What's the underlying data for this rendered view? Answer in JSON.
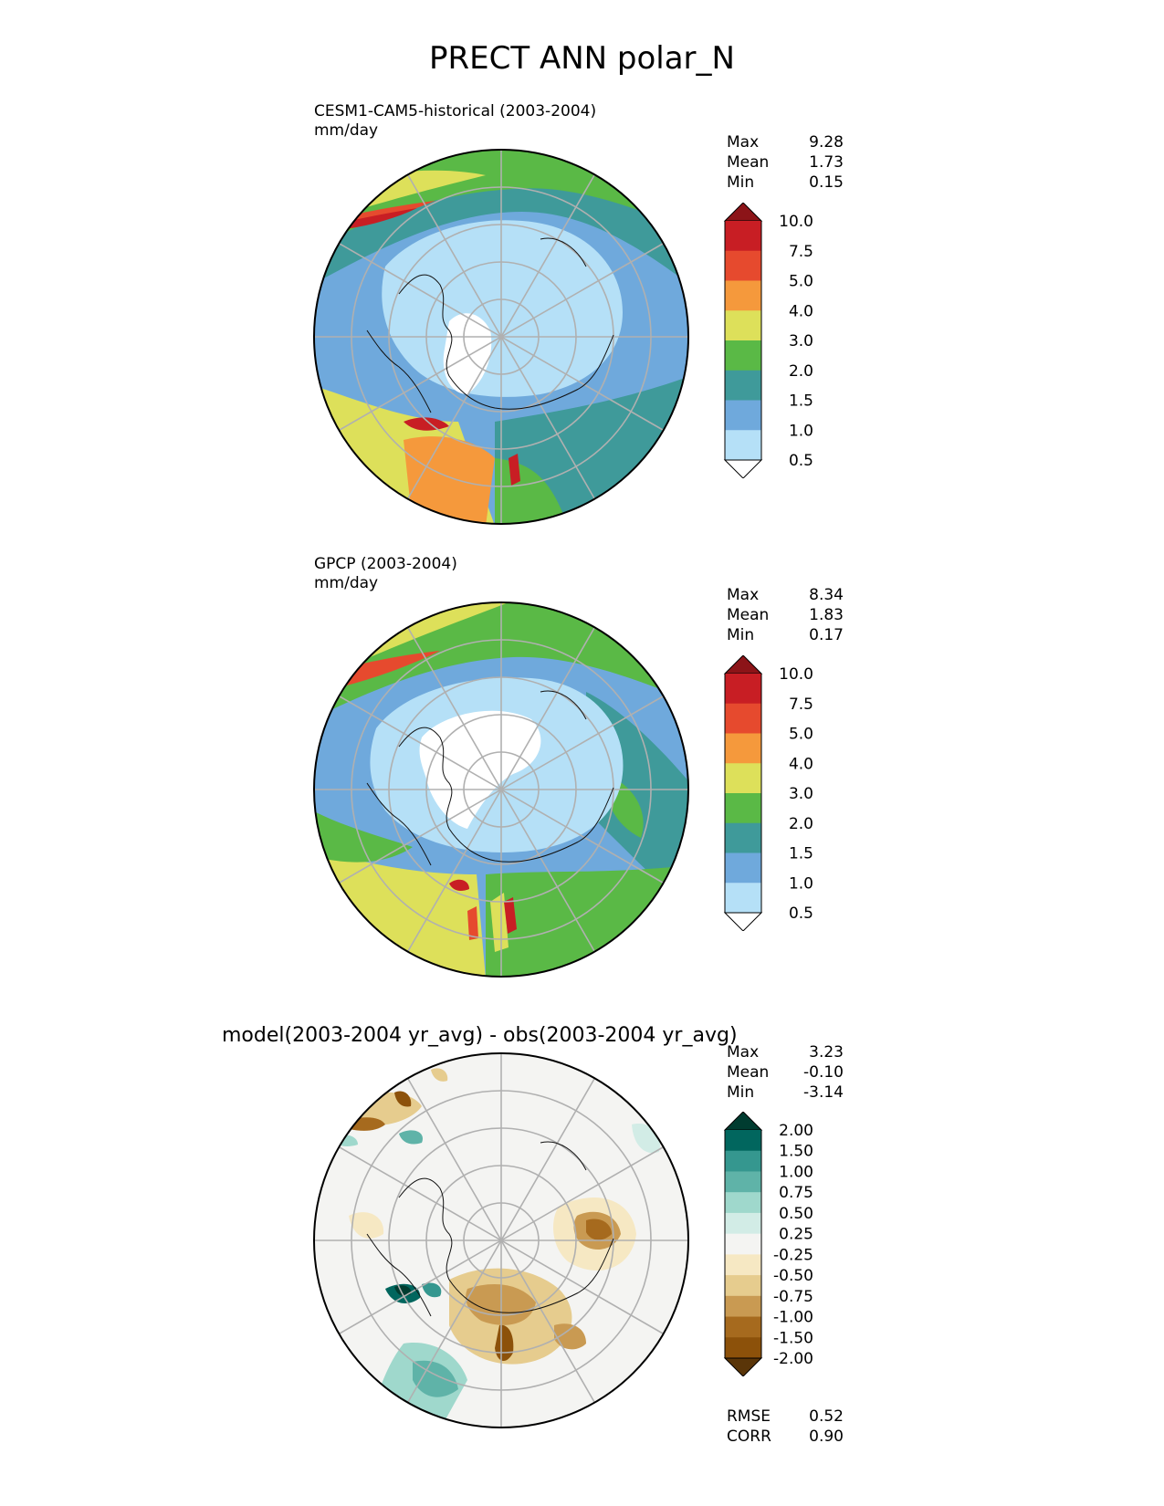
{
  "title": "PRECT ANN polar_N",
  "panels": [
    {
      "id": "model",
      "title_line1": "CESM1-CAM5-historical (2003-2004)",
      "title_line2": "mm/day",
      "stats": [
        {
          "label": "Max",
          "value": "9.28"
        },
        {
          "label": "Mean",
          "value": "1.73"
        },
        {
          "label": "Min",
          "value": "0.15"
        }
      ],
      "colorbar": {
        "labels": [
          "10.0",
          "7.5",
          "5.0",
          "4.0",
          "3.0",
          "2.0",
          "1.5",
          "1.0",
          "0.5"
        ],
        "colors": [
          "#8c1418",
          "#c81e24",
          "#e64a2e",
          "#f5993c",
          "#dde05a",
          "#5ab946",
          "#3f9a9a",
          "#6fa9dc",
          "#b5e0f7",
          "#ffffff"
        ]
      }
    },
    {
      "id": "obs",
      "title_line1": "GPCP (2003-2004)",
      "title_line2": "mm/day",
      "stats": [
        {
          "label": "Max",
          "value": "8.34"
        },
        {
          "label": "Mean",
          "value": "1.83"
        },
        {
          "label": "Min",
          "value": "0.17"
        }
      ],
      "colorbar": {
        "labels": [
          "10.0",
          "7.5",
          "5.0",
          "4.0",
          "3.0",
          "2.0",
          "1.5",
          "1.0",
          "0.5"
        ],
        "colors": [
          "#8c1418",
          "#c81e24",
          "#e64a2e",
          "#f5993c",
          "#dde05a",
          "#5ab946",
          "#3f9a9a",
          "#6fa9dc",
          "#b5e0f7",
          "#ffffff"
        ]
      }
    },
    {
      "id": "diff",
      "title_line1": "model(2003-2004 yr_avg) - obs(2003-2004 yr_avg)",
      "stats": [
        {
          "label": "Max",
          "value": "3.23"
        },
        {
          "label": "Mean",
          "value": "-0.10"
        },
        {
          "label": "Min",
          "value": "-3.14"
        }
      ],
      "colorbar": {
        "labels": [
          "2.00",
          "1.50",
          "1.00",
          "0.75",
          "0.50",
          "0.25",
          "-0.25",
          "-0.50",
          "-0.75",
          "-1.00",
          "-1.50",
          "-2.00"
        ],
        "colors": [
          "#003c30",
          "#01665e",
          "#35978f",
          "#5fb3a8",
          "#9fd8cc",
          "#d2ece6",
          "#f4f4f2",
          "#f6e8c3",
          "#e6cc8e",
          "#c99a52",
          "#a66a1e",
          "#8c510a",
          "#5a3508"
        ]
      },
      "metrics": [
        {
          "label": "RMSE",
          "value": "0.52"
        },
        {
          "label": "CORR",
          "value": "0.90"
        }
      ]
    }
  ]
}
